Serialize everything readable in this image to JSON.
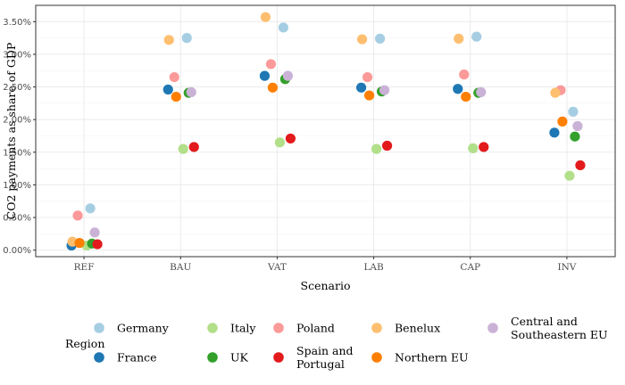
{
  "chart_data": {
    "type": "scatter",
    "title": "",
    "xlabel": "Scenario",
    "ylabel": "CO2 payments as share of GDP",
    "categories": [
      "REF",
      "BAU",
      "VAT",
      "LAB",
      "CAP",
      "INV"
    ],
    "ylim": [
      -0.1,
      3.75
    ],
    "yticks": [
      0.0,
      0.5,
      1.0,
      1.5,
      2.0,
      2.5,
      3.0,
      3.5
    ],
    "ytick_labels": [
      "0.00%",
      "0.50%",
      "1.00%",
      "1.50%",
      "2.00%",
      "2.50%",
      "3.00%",
      "3.50%"
    ],
    "grid": true,
    "legend_title": "Region",
    "legend_position": "bottom",
    "series": [
      {
        "name": "Germany",
        "color": "#a6cee3",
        "values": [
          0.64,
          3.25,
          3.41,
          3.24,
          3.27,
          2.12
        ]
      },
      {
        "name": "France",
        "color": "#1f78b4",
        "values": [
          0.07,
          2.46,
          2.67,
          2.49,
          2.47,
          1.8
        ]
      },
      {
        "name": "Italy",
        "color": "#b2df8a",
        "values": [
          0.07,
          1.55,
          1.65,
          1.55,
          1.56,
          1.14
        ]
      },
      {
        "name": "UK",
        "color": "#33a02c",
        "values": [
          0.1,
          2.41,
          2.62,
          2.43,
          2.41,
          1.74
        ]
      },
      {
        "name": "Poland",
        "color": "#fb9a99",
        "values": [
          0.53,
          2.65,
          2.85,
          2.65,
          2.69,
          2.45
        ]
      },
      {
        "name": "Spain and\nPortugal",
        "color": "#e31a1c",
        "values": [
          0.09,
          1.58,
          1.71,
          1.6,
          1.58,
          1.3
        ]
      },
      {
        "name": "Benelux",
        "color": "#fdbf6f",
        "values": [
          0.13,
          3.22,
          3.57,
          3.23,
          3.24,
          2.41
        ]
      },
      {
        "name": "Northern EU",
        "color": "#ff7f00",
        "values": [
          0.11,
          2.35,
          2.49,
          2.37,
          2.35,
          1.97
        ]
      },
      {
        "name": "Central and\nSoutheastern EU",
        "color": "#cab2d6",
        "values": [
          0.27,
          2.42,
          2.67,
          2.45,
          2.42,
          1.9
        ]
      }
    ]
  }
}
